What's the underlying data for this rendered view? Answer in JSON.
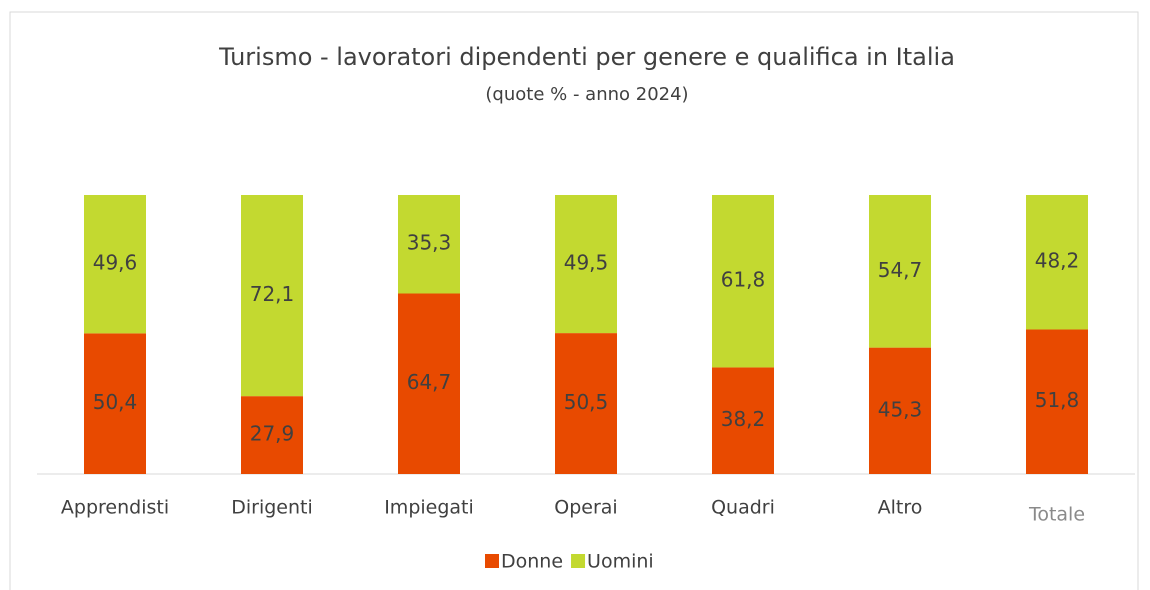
{
  "chart_data": {
    "type": "stacked_bar",
    "title": "Turismo - lavoratori dipendenti per genere e qualifica in Italia",
    "subtitle": "(quote % - anno 2024)",
    "categories": [
      "Apprendisti",
      "Dirigenti",
      "Impiegati",
      "Operai",
      "Quadri",
      "Altro",
      "Totale"
    ],
    "series": [
      {
        "name": "Donne",
        "color": "#e84a00",
        "values": [
          50.4,
          27.9,
          64.7,
          50.5,
          38.2,
          45.3,
          51.8
        ],
        "value_labels": [
          "50,4",
          "27,9",
          "64,7",
          "50,5",
          "38,2",
          "45,3",
          "51,8"
        ]
      },
      {
        "name": "Uomini",
        "color": "#c3d930",
        "values": [
          49.6,
          72.1,
          35.3,
          49.5,
          61.8,
          54.7,
          48.2
        ],
        "value_labels": [
          "49,6",
          "72,1",
          "35,3",
          "49,5",
          "61,8",
          "54,7",
          "48,2"
        ]
      }
    ],
    "legend": "bottom"
  }
}
